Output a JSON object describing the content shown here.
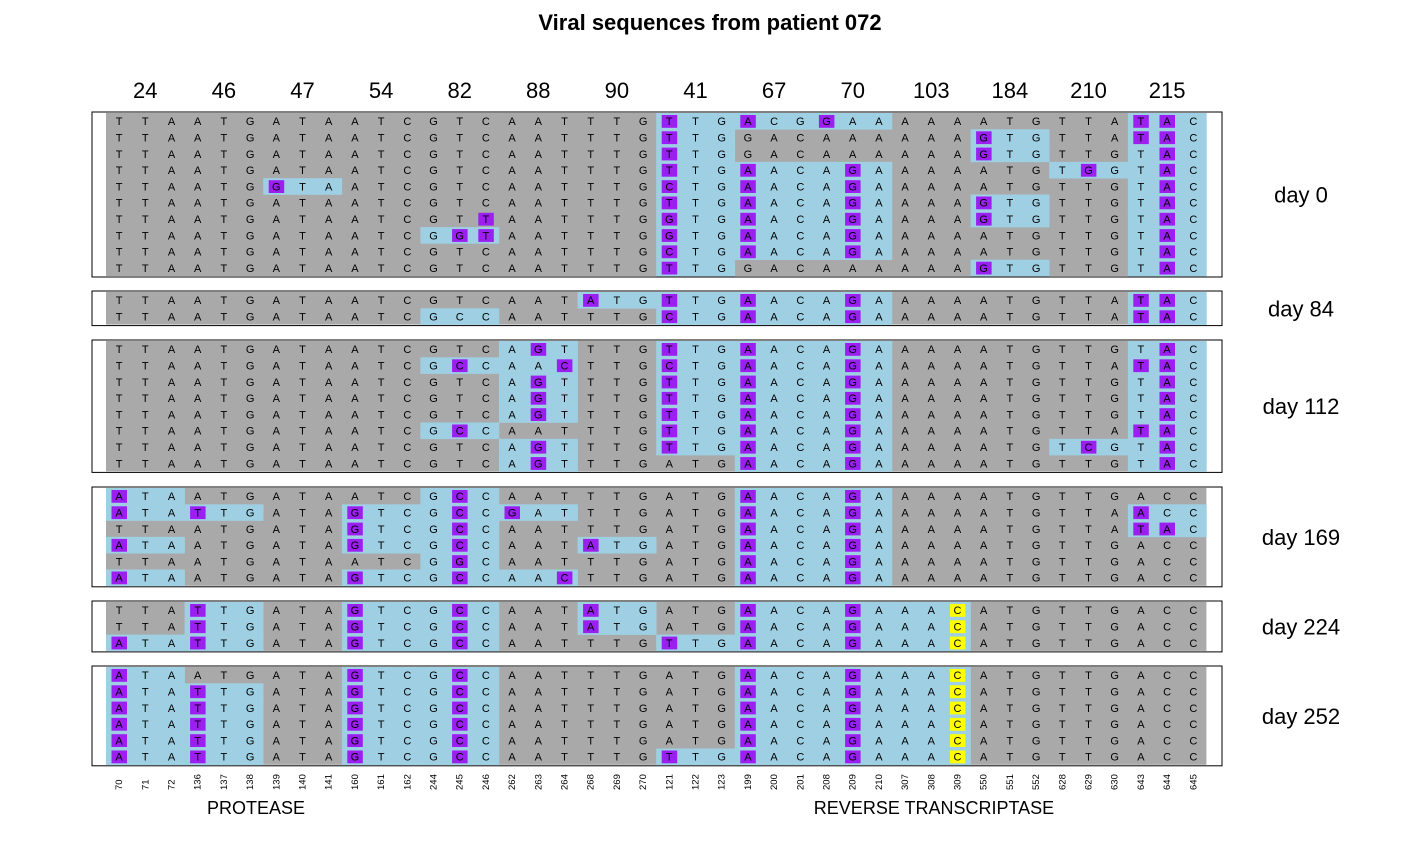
{
  "title": "Viral sequences from patient 072",
  "codons": [
    "24",
    "46",
    "47",
    "54",
    "82",
    "88",
    "90",
    "41",
    "67",
    "70",
    "103",
    "184",
    "210",
    "215"
  ],
  "positions": [
    "70",
    "71",
    "72",
    "136",
    "137",
    "138",
    "139",
    "140",
    "141",
    "160",
    "161",
    "162",
    "244",
    "245",
    "246",
    "262",
    "263",
    "264",
    "268",
    "269",
    "270",
    "121",
    "122",
    "123",
    "199",
    "200",
    "201",
    "208",
    "209",
    "210",
    "307",
    "308",
    "309",
    "550",
    "551",
    "552",
    "628",
    "629",
    "630",
    "643",
    "644",
    "645"
  ],
  "genes": [
    "PROTEASE",
    "REVERSE TRANSCRIPTASE"
  ],
  "colors": {
    "gray": "#a9a9a9",
    "blue": "#9fcfe3",
    "purple": "#9a1ff0",
    "yellow": "#ffff00",
    "frame": "#000000"
  },
  "groups": [
    {
      "label": "day 0",
      "rows": [
        {
          "seq": "TTAATGATAATCGTCAATTTGTTGACGGAAAAAATGTTATAC",
          "blue": [
            21,
            22,
            23,
            24,
            25,
            26,
            27,
            28,
            29,
            39,
            40,
            41
          ],
          "purple": [
            21,
            24,
            27,
            39,
            40
          ],
          "yellow": []
        },
        {
          "seq": "TTAATGATAATCGTCAATTTGTTGGACAAAAAAGTGTTATAC",
          "blue": [
            21,
            22,
            23,
            33,
            34,
            35,
            39,
            40,
            41
          ],
          "purple": [
            21,
            33,
            39,
            40
          ],
          "yellow": []
        },
        {
          "seq": "TTAATGATAATCGTCAATTTGTTGGACAAAAAAGTGTTGTAC",
          "blue": [
            21,
            22,
            23,
            33,
            34,
            35,
            39,
            40,
            41
          ],
          "purple": [
            21,
            33,
            40
          ],
          "yellow": []
        },
        {
          "seq": "TTAATGATAATCGTCAATTTGTTGAACAGAAAAATGTGGTAC",
          "blue": [
            21,
            22,
            23,
            24,
            25,
            26,
            27,
            28,
            29,
            36,
            37,
            38,
            39,
            40,
            41
          ],
          "purple": [
            21,
            24,
            28,
            37,
            40
          ],
          "yellow": []
        },
        {
          "seq": "TTAATGGTAATCGTCAATTTGCTGAACAGAAAAATGTTGTAC",
          "blue": [
            6,
            7,
            8,
            21,
            22,
            23,
            24,
            25,
            26,
            27,
            28,
            29,
            39,
            40,
            41
          ],
          "purple": [
            6,
            21,
            24,
            28,
            40
          ],
          "yellow": []
        },
        {
          "seq": "TTAATGATAATCGTCAATTTGTTGAACAGAAAAGTGTTGTAC",
          "blue": [
            21,
            22,
            23,
            24,
            25,
            26,
            27,
            28,
            29,
            33,
            34,
            35,
            39,
            40,
            41
          ],
          "purple": [
            21,
            24,
            28,
            33,
            40
          ],
          "yellow": []
        },
        {
          "seq": "TTAATGATAATCGTTAATTTGGTGAACAGAAAAGTGTTGTAC",
          "blue": [
            21,
            22,
            23,
            24,
            25,
            26,
            27,
            28,
            29,
            33,
            34,
            35,
            39,
            40,
            41
          ],
          "purple": [
            14,
            21,
            24,
            28,
            33,
            40
          ],
          "yellow": []
        },
        {
          "seq": "TTAATGATAATCGGTAATTTGGTGAACAGAAAAATGTTGTAC",
          "blue": [
            12,
            13,
            14,
            21,
            22,
            23,
            24,
            25,
            26,
            27,
            28,
            29,
            39,
            40,
            41
          ],
          "purple": [
            13,
            14,
            21,
            24,
            28,
            40
          ],
          "yellow": []
        },
        {
          "seq": "TTAATGATAATCGTCAATTTGCTGAACAGAAAAATGTTGTAC",
          "blue": [
            21,
            22,
            23,
            24,
            25,
            26,
            27,
            28,
            29,
            39,
            40,
            41
          ],
          "purple": [
            21,
            24,
            28,
            40
          ],
          "yellow": []
        },
        {
          "seq": "TTAATGATAATCGTCAATTTGTTGGACAAAAAAGTGTTGTAC",
          "blue": [
            21,
            22,
            23,
            33,
            34,
            35,
            39,
            40,
            41
          ],
          "purple": [
            21,
            33,
            40
          ],
          "yellow": []
        }
      ]
    },
    {
      "label": "day 84",
      "rows": [
        {
          "seq": "TTAATGATAATCGTCAATATGTTGAACAGAAAAATGTTATAC",
          "blue": [
            18,
            19,
            20,
            21,
            22,
            23,
            24,
            25,
            26,
            27,
            28,
            29,
            39,
            40,
            41
          ],
          "purple": [
            18,
            21,
            24,
            28,
            39,
            40
          ],
          "yellow": []
        },
        {
          "seq": "TTAATGATAATCGCCAATTTGCTGAACAGAAAAATGTTATAC",
          "blue": [
            12,
            13,
            14,
            21,
            22,
            23,
            24,
            25,
            26,
            27,
            28,
            29,
            39,
            40,
            41
          ],
          "purple": [
            21,
            24,
            28,
            39,
            40
          ],
          "yellow": []
        }
      ]
    },
    {
      "label": "day 112",
      "rows": [
        {
          "seq": "TTAATGATAATCGTCAGTTTGTTGAACAGAAAAATGTTGTAC",
          "blue": [
            15,
            16,
            17,
            21,
            22,
            23,
            24,
            25,
            26,
            27,
            28,
            29,
            39,
            40,
            41
          ],
          "purple": [
            16,
            21,
            24,
            28,
            40
          ],
          "yellow": []
        },
        {
          "seq": "TTAATGATAATCGCCAACTTGCTGAACAGAAAAATGTTATAC",
          "blue": [
            12,
            13,
            14,
            15,
            16,
            17,
            21,
            22,
            23,
            24,
            25,
            26,
            27,
            28,
            29,
            39,
            40,
            41
          ],
          "purple": [
            13,
            17,
            21,
            24,
            28,
            39,
            40
          ],
          "yellow": []
        },
        {
          "seq": "TTAATGATAATCGTCAGTTTGTTGAACAGAAAAATGTTGTAC",
          "blue": [
            15,
            16,
            17,
            21,
            22,
            23,
            24,
            25,
            26,
            27,
            28,
            29,
            39,
            40,
            41
          ],
          "purple": [
            16,
            21,
            24,
            28,
            40
          ],
          "yellow": []
        },
        {
          "seq": "TTAATGATAATCGTCAGTTTGTTGAACAGAAAAATGTTGTAC",
          "blue": [
            15,
            16,
            17,
            21,
            22,
            23,
            24,
            25,
            26,
            27,
            28,
            29,
            39,
            40,
            41
          ],
          "purple": [
            16,
            21,
            24,
            28,
            40
          ],
          "yellow": []
        },
        {
          "seq": "TTAATGATAATCGTCAGTTTGTTGAACAGAAAAATGTTGTAC",
          "blue": [
            15,
            16,
            17,
            21,
            22,
            23,
            24,
            25,
            26,
            27,
            28,
            29,
            39,
            40,
            41
          ],
          "purple": [
            16,
            21,
            24,
            28,
            40
          ],
          "yellow": []
        },
        {
          "seq": "TTAATGATAATCGCCAATTTGTTGAACAGAAAAATGTTATAC",
          "blue": [
            12,
            13,
            14,
            21,
            22,
            23,
            24,
            25,
            26,
            27,
            28,
            29,
            39,
            40,
            41
          ],
          "purple": [
            13,
            21,
            24,
            28,
            39,
            40
          ],
          "yellow": []
        },
        {
          "seq": "TTAATGATAATCGTCAGTTTGTTGAACAGAAAAATGTCGTAC",
          "blue": [
            15,
            16,
            17,
            21,
            22,
            23,
            24,
            25,
            26,
            27,
            28,
            29,
            36,
            37,
            38,
            39,
            40,
            41
          ],
          "purple": [
            16,
            21,
            24,
            28,
            37,
            40
          ],
          "yellow": []
        },
        {
          "seq": "TTAATGATAATCGTCAGTTTGATGAACAGAAAAATGTTGTAC",
          "blue": [
            15,
            16,
            17,
            24,
            25,
            26,
            27,
            28,
            29,
            39,
            40,
            41
          ],
          "purple": [
            16,
            24,
            28,
            40
          ],
          "yellow": []
        }
      ]
    },
    {
      "label": "day 169",
      "rows": [
        {
          "seq": "ATAATGATAATCGCCAATTTGATGAACAGAAAAATGTTGACC",
          "blue": [
            0,
            1,
            2,
            12,
            13,
            14,
            24,
            25,
            26,
            27,
            28,
            29
          ],
          "purple": [
            0,
            13,
            24,
            28
          ],
          "yellow": []
        },
        {
          "seq": "ATATTGATAGTCGCCGATTTGATGAACAGAAAAATGTTAACC",
          "blue": [
            0,
            1,
            2,
            3,
            4,
            5,
            9,
            10,
            11,
            12,
            13,
            14,
            15,
            16,
            17,
            24,
            25,
            26,
            27,
            28,
            29,
            39,
            40,
            41
          ],
          "purple": [
            0,
            3,
            9,
            13,
            15,
            24,
            28,
            39
          ],
          "yellow": []
        },
        {
          "seq": "TTAATGATAGTCGCCAATTTGATGAACAGAAAAATGTTATAC",
          "blue": [
            9,
            10,
            11,
            12,
            13,
            14,
            24,
            25,
            26,
            27,
            28,
            29,
            39,
            40,
            41
          ],
          "purple": [
            9,
            13,
            24,
            28,
            39,
            40
          ],
          "yellow": []
        },
        {
          "seq": "ATAATGATAGTCGCCAATATGATGAACAGAAAAATGTTGACC",
          "blue": [
            0,
            1,
            2,
            9,
            10,
            11,
            12,
            13,
            14,
            18,
            19,
            20,
            24,
            25,
            26,
            27,
            28,
            29
          ],
          "purple": [
            0,
            9,
            13,
            18,
            24,
            28
          ],
          "yellow": []
        },
        {
          "seq": "TTAATGATAATCGGCAATTTGATGAACAGAAAAATGTTGACC",
          "blue": [
            12,
            13,
            14,
            24,
            25,
            26,
            27,
            28,
            29
          ],
          "purple": [
            13,
            24,
            28
          ],
          "yellow": []
        },
        {
          "seq": "ATAATGATAGTCGCCAACTTGATGAACAGAAAAATGTTGACC",
          "blue": [
            0,
            1,
            2,
            9,
            10,
            11,
            12,
            13,
            14,
            15,
            16,
            17,
            24,
            25,
            26,
            27,
            28,
            29
          ],
          "purple": [
            0,
            9,
            13,
            17,
            24,
            28
          ],
          "yellow": []
        }
      ]
    },
    {
      "label": "day 224",
      "rows": [
        {
          "seq": "TTATTGATAGTCGCCAATATGATGAACAGAAACATGTTGACC",
          "blue": [
            3,
            4,
            5,
            9,
            10,
            11,
            12,
            13,
            14,
            18,
            19,
            20,
            24,
            25,
            26,
            27,
            28,
            29,
            30,
            31,
            32
          ],
          "purple": [
            3,
            9,
            13,
            18,
            24,
            28
          ],
          "yellow": [
            32
          ]
        },
        {
          "seq": "TTATTGATAGTCGCCAATATGATGAACAGAAACATGTTGACC",
          "blue": [
            3,
            4,
            5,
            9,
            10,
            11,
            12,
            13,
            14,
            18,
            19,
            20,
            24,
            25,
            26,
            27,
            28,
            29,
            30,
            31,
            32
          ],
          "purple": [
            3,
            9,
            13,
            18,
            24,
            28
          ],
          "yellow": [
            32
          ]
        },
        {
          "seq": "ATATTGATAGTCGCCAATTTGTTGAACAGAAACATGTTGACC",
          "blue": [
            0,
            1,
            2,
            3,
            4,
            5,
            9,
            10,
            11,
            12,
            13,
            14,
            21,
            22,
            23,
            24,
            25,
            26,
            27,
            28,
            29,
            30,
            31,
            32
          ],
          "purple": [
            0,
            3,
            9,
            13,
            21,
            24,
            28
          ],
          "yellow": [
            32
          ]
        }
      ]
    },
    {
      "label": "day 252",
      "rows": [
        {
          "seq": "ATAATGATAGTCGCCAATTTGATGAACAGAAACATGTTGACC",
          "blue": [
            0,
            1,
            2,
            9,
            10,
            11,
            12,
            13,
            14,
            24,
            25,
            26,
            27,
            28,
            29,
            30,
            31,
            32
          ],
          "purple": [
            0,
            9,
            13,
            24,
            28
          ],
          "yellow": [
            32
          ]
        },
        {
          "seq": "ATATTGATAGTCGCCAATTTGATGAACAGAAACATGTTGACC",
          "blue": [
            0,
            1,
            2,
            3,
            4,
            5,
            9,
            10,
            11,
            12,
            13,
            14,
            24,
            25,
            26,
            27,
            28,
            29,
            30,
            31,
            32
          ],
          "purple": [
            0,
            3,
            9,
            13,
            24,
            28
          ],
          "yellow": [
            32
          ]
        },
        {
          "seq": "ATATTGATAGTCGCCAATTTGATGAACAGAAACATGTTGACC",
          "blue": [
            0,
            1,
            2,
            3,
            4,
            5,
            9,
            10,
            11,
            12,
            13,
            14,
            24,
            25,
            26,
            27,
            28,
            29,
            30,
            31,
            32
          ],
          "purple": [
            0,
            3,
            9,
            13,
            24,
            28
          ],
          "yellow": [
            32
          ]
        },
        {
          "seq": "ATATTGATAGTCGCCAATTTGATGAACAGAAACATGTTGACC",
          "blue": [
            0,
            1,
            2,
            3,
            4,
            5,
            9,
            10,
            11,
            12,
            13,
            14,
            24,
            25,
            26,
            27,
            28,
            29,
            30,
            31,
            32
          ],
          "purple": [
            0,
            3,
            9,
            13,
            24,
            28
          ],
          "yellow": [
            32
          ]
        },
        {
          "seq": "ATATTGATAGTCGCCAATTTGATGAACAGAAACATGTTGACC",
          "blue": [
            0,
            1,
            2,
            3,
            4,
            5,
            9,
            10,
            11,
            12,
            13,
            14,
            24,
            25,
            26,
            27,
            28,
            29,
            30,
            31,
            32
          ],
          "purple": [
            0,
            3,
            9,
            13,
            24,
            28
          ],
          "yellow": [
            32
          ]
        },
        {
          "seq": "ATATTGATAGTCGCCAATTTGTTGAACAGAAACATGTTGACC",
          "blue": [
            0,
            1,
            2,
            3,
            4,
            5,
            9,
            10,
            11,
            12,
            13,
            14,
            21,
            22,
            23,
            24,
            25,
            26,
            27,
            28,
            29,
            30,
            31,
            32
          ],
          "purple": [
            0,
            3,
            9,
            13,
            21,
            24,
            28
          ],
          "yellow": [
            32
          ]
        }
      ]
    }
  ]
}
